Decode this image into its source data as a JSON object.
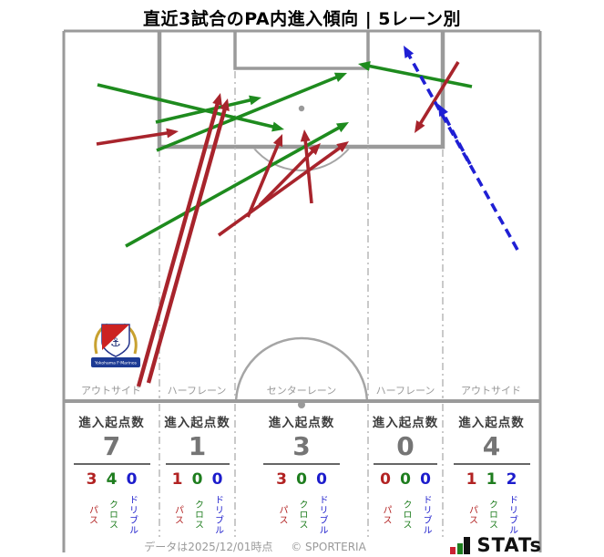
{
  "title": "直近3試合のPA内進入傾向 | 5レーン別",
  "stats_header": "進入起点数",
  "team": {
    "banner_text": "Yokohama F·Marinos"
  },
  "footer": {
    "date_note": "データは2025/12/01時点",
    "copyright": "© SPORTERIA",
    "brand": "STATs"
  },
  "chart_data": {
    "type": "table",
    "title": "直近3試合のPA内進入傾向 | 5レーン別",
    "categories": [
      "アウトサイド",
      "ハーフレーン",
      "センターレーン",
      "ハーフレーン",
      "アウトサイド"
    ],
    "series": [
      {
        "name": "進入起点数",
        "values": [
          7,
          1,
          3,
          0,
          4
        ]
      },
      {
        "name": "パス",
        "values": [
          3,
          1,
          3,
          0,
          1
        ]
      },
      {
        "name": "クロス",
        "values": [
          4,
          0,
          0,
          0,
          1
        ]
      },
      {
        "name": "ドリブル",
        "values": [
          0,
          0,
          0,
          0,
          2
        ]
      }
    ],
    "lanes": [
      {
        "label": "アウトサイド",
        "count": 7,
        "pass": 3,
        "cross": 4,
        "dribble": 0
      },
      {
        "label": "ハーフレーン",
        "count": 1,
        "pass": 1,
        "cross": 0,
        "dribble": 0
      },
      {
        "label": "センターレーン",
        "count": 3,
        "pass": 3,
        "cross": 0,
        "dribble": 0
      },
      {
        "label": "ハーフレーン",
        "count": 0,
        "pass": 0,
        "cross": 0,
        "dribble": 0
      },
      {
        "label": "アウトサイド",
        "count": 4,
        "pass": 1,
        "cross": 1,
        "dribble": 2
      }
    ],
    "legend": {
      "pass": "パス",
      "cross": "クロス",
      "dribble": "ドリブル"
    },
    "colors": {
      "pass": "#a8242c",
      "cross": "#1e8b1e",
      "dribble": "#1f1fd4"
    },
    "arrows": [
      {
        "type": "cross",
        "from": [
          107,
          93
        ],
        "to": [
          312,
          142
        ]
      },
      {
        "type": "cross",
        "from": [
          138,
          270
        ],
        "to": [
          383,
          134
        ]
      },
      {
        "type": "cross",
        "from": [
          172,
          165
        ],
        "to": [
          381,
          80
        ]
      },
      {
        "type": "cross",
        "from": [
          171,
          134
        ],
        "to": [
          287,
          107
        ]
      },
      {
        "type": "cross",
        "from": [
          518,
          95
        ],
        "to": [
          393,
          70
        ]
      },
      {
        "type": "pass",
        "from": [
          152,
          424
        ],
        "to": [
          242,
          102
        ],
        "width": 4.4
      },
      {
        "type": "pass",
        "from": [
          163,
          420
        ],
        "to": [
          250,
          108
        ],
        "width": 4.4
      },
      {
        "type": "pass",
        "from": [
          106,
          158
        ],
        "to": [
          196,
          144
        ]
      },
      {
        "type": "pass",
        "from": [
          240,
          258
        ],
        "to": [
          383,
          155
        ]
      },
      {
        "type": "pass",
        "from": [
          272,
          238
        ],
        "to": [
          310,
          147
        ]
      },
      {
        "type": "pass",
        "from": [
          342,
          223
        ],
        "to": [
          334,
          142
        ]
      },
      {
        "type": "pass",
        "from": [
          285,
          225
        ],
        "to": [
          352,
          157
        ]
      },
      {
        "type": "pass",
        "from": [
          503,
          68
        ],
        "to": [
          455,
          146
        ]
      },
      {
        "type": "dribble",
        "from": [
          568,
          274
        ],
        "to": [
          443,
          50
        ]
      },
      {
        "type": "dribble",
        "from": [
          516,
          180
        ],
        "to": [
          481,
          114
        ]
      }
    ]
  }
}
